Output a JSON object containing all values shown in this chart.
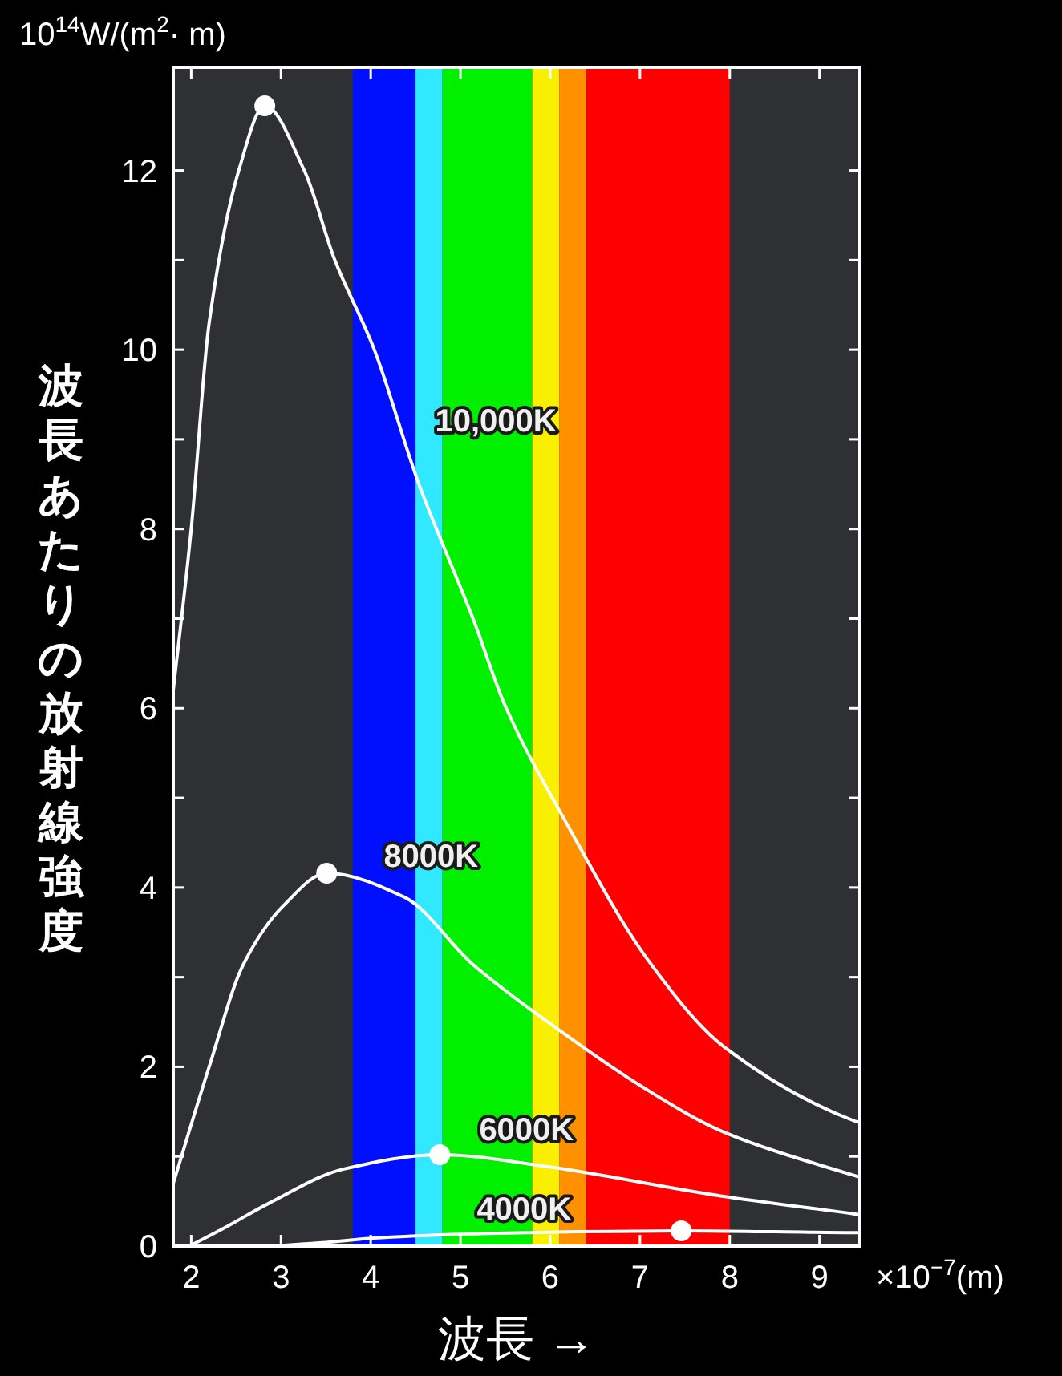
{
  "chart_data": {
    "type": "line",
    "ylabel": "波長あたりの放射線強度",
    "xlabel": "波長 →",
    "annotations": [
      "10$^{14}$W/(m$^{2}$· m)",
      "×10$^{−7}$(m)"
    ],
    "xlim": [
      1.8,
      9.45
    ],
    "ylim": [
      0,
      13.15
    ],
    "xticks": [
      2,
      3,
      4,
      5,
      6,
      7,
      8,
      9
    ],
    "yticks": [
      0,
      {
        "value": 1,
        "label": null
      },
      2,
      {
        "value": 3,
        "label": null
      },
      4,
      {
        "value": 5,
        "label": null
      },
      6,
      {
        "value": 7,
        "label": null
      },
      8,
      {
        "value": 9,
        "label": null
      },
      10,
      {
        "value": 11,
        "label": null
      },
      12
    ],
    "grid": false,
    "marker": "none",
    "line_style": "solid",
    "bands": [
      {
        "axis": "x",
        "from": 3.8,
        "to": 4.5,
        "color": "#0010ff"
      },
      {
        "axis": "x",
        "from": 4.5,
        "to": 4.8,
        "color": "#30e8ff"
      },
      {
        "axis": "x",
        "from": 4.8,
        "to": 5.8,
        "color": "#00f000"
      },
      {
        "axis": "x",
        "from": 5.8,
        "to": 6.1,
        "color": "#f8f000"
      },
      {
        "axis": "x",
        "from": 6.1,
        "to": 6.4,
        "color": "#ff9000"
      },
      {
        "axis": "x",
        "from": 6.4,
        "to": 8.0,
        "color": "#ff0000"
      }
    ],
    "series": [
      {
        "name": "10,000K",
        "color": "#ffffff",
        "x": [
          1.8,
          2.0,
          2.2,
          2.53,
          2.82,
          3.26,
          3.6,
          4.04,
          4.53,
          5.14,
          5.51,
          6.18,
          7.09,
          7.94,
          9.38,
          9.45
        ],
        "values": [
          6.2,
          8.0,
          10.3,
          12.0,
          12.72,
          12.0,
          11.0,
          10.0,
          8.52,
          7.0,
          6.0,
          4.72,
          3.19,
          2.22,
          1.4,
          1.38
        ]
      },
      {
        "name": "8000K",
        "color": "#ffffff",
        "x": [
          1.8,
          2.2,
          2.58,
          3.03,
          3.51,
          4.38,
          5.14,
          6.03,
          7.02,
          7.94,
          9.38,
          9.45
        ],
        "values": [
          0.7,
          2.0,
          3.14,
          3.8,
          4.16,
          3.89,
          3.14,
          2.46,
          1.78,
          1.27,
          0.79,
          0.77
        ]
      },
      {
        "name": "6000K",
        "color": "#ffffff",
        "x": [
          1.98,
          2.4,
          2.87,
          3.7,
          4.77,
          5.88,
          7.9,
          9.38,
          9.45
        ],
        "values": [
          0,
          0.22,
          0.48,
          0.86,
          1.02,
          0.9,
          0.56,
          0.36,
          0.35
        ]
      },
      {
        "name": "4000K",
        "color": "#ffffff",
        "x": [
          2.9,
          3.5,
          4.04,
          5.3,
          6.3,
          7.46,
          8.5,
          9.38,
          9.45
        ],
        "values": [
          0,
          0.04,
          0.09,
          0.14,
          0.16,
          0.17,
          0.16,
          0.15,
          0.15
        ]
      },
      {
        "type": "scatter",
        "marker": "circle",
        "color": "#ffffff",
        "x": [
          2.82,
          3.51,
          4.77,
          7.46
        ],
        "values": [
          12.72,
          4.16,
          1.02,
          0.17
        ]
      }
    ]
  }
}
